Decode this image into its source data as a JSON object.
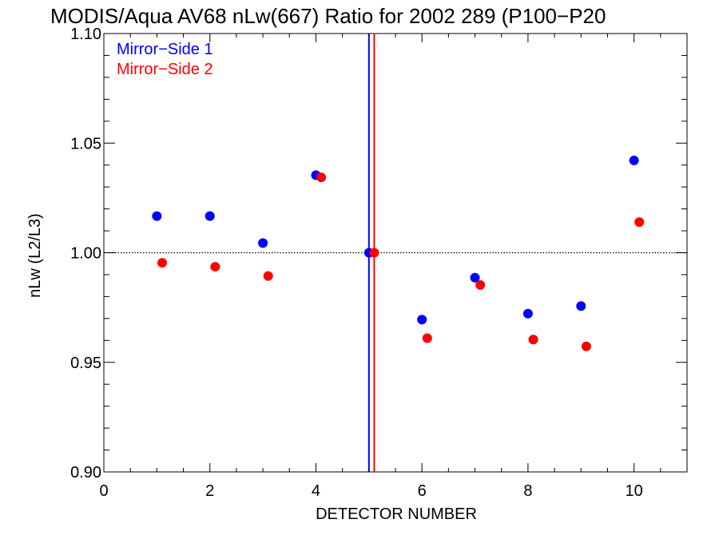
{
  "chart_data": {
    "type": "scatter",
    "title": "MODIS/Aqua AV68 nLw(667) Ratio for 2002 289 (P100−P20",
    "xlabel": "DETECTOR NUMBER",
    "ylabel": "nLw (L2/L3)",
    "xlim": [
      0,
      11
    ],
    "ylim": [
      0.9,
      1.1
    ],
    "x_ticks": [
      0,
      2,
      4,
      6,
      8,
      10
    ],
    "x_tick_labels": [
      "0",
      "2",
      "4",
      "6",
      "8",
      "10"
    ],
    "y_ticks": [
      0.9,
      0.95,
      1.0,
      1.05,
      1.1
    ],
    "y_tick_labels": [
      "0.90",
      "0.95",
      "1.00",
      "1.05",
      "1.10"
    ],
    "reference_line_y": 1.0,
    "grid": false,
    "legend_position": "top-left",
    "series": [
      {
        "name": "Mirror−Side 1",
        "color": "#0000ff",
        "vertical_line_x": 5.0,
        "x": [
          1,
          2,
          3,
          4,
          5,
          6,
          7,
          8,
          9,
          10
        ],
        "y": [
          1.0167,
          1.0167,
          1.0044,
          1.0354,
          1.0,
          0.9695,
          0.9886,
          0.9722,
          0.9757,
          1.0421
        ]
      },
      {
        "name": "Mirror−Side 2",
        "color": "#ff0000",
        "vertical_line_x": 5.1,
        "x": [
          1.1,
          2.1,
          3.1,
          4.1,
          5.1,
          6.1,
          7.1,
          8.1,
          9.1,
          10.1
        ],
        "y": [
          0.9954,
          0.9936,
          0.9894,
          1.0344,
          1.0,
          0.961,
          0.9853,
          0.9604,
          0.9573,
          1.014
        ]
      }
    ]
  }
}
